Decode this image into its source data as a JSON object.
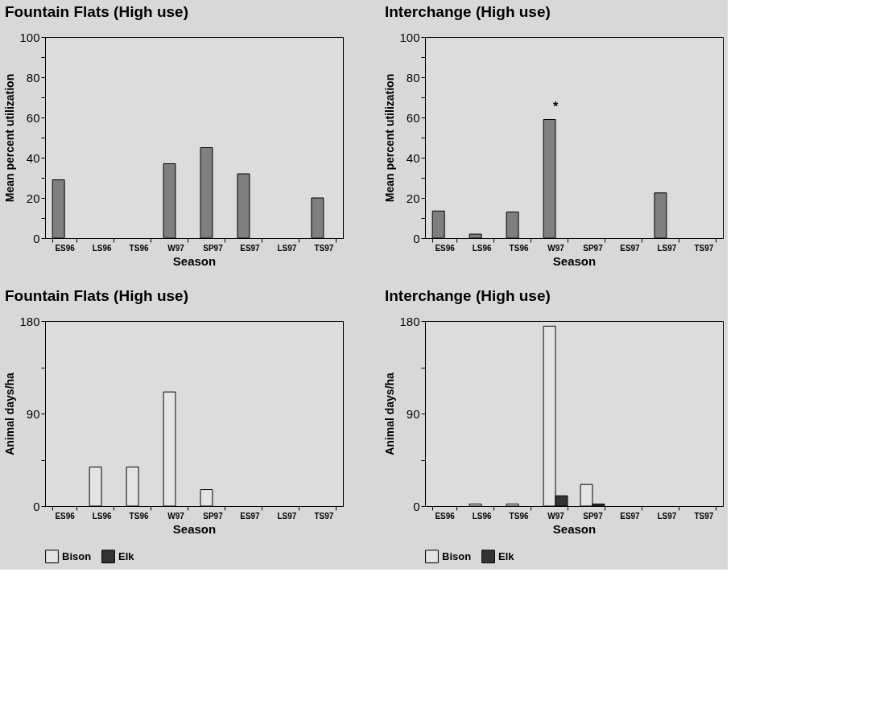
{
  "chart_data": [
    {
      "type": "bar",
      "title": "Fountain Flats (High use)",
      "xlabel": "Season",
      "ylabel": "Mean percent utilization",
      "categories": [
        "ES96",
        "LS96",
        "TS96",
        "W97",
        "SP97",
        "ES97",
        "LS97",
        "TS97"
      ],
      "series": [
        {
          "color": "#7f7f7f",
          "values": [
            29,
            0,
            0,
            37,
            45,
            32,
            0,
            20
          ]
        }
      ],
      "ylim": [
        0,
        100
      ],
      "yticks": [
        0,
        {
          "value": 10,
          "label": null
        },
        20,
        {
          "value": 30,
          "label": null
        },
        40,
        {
          "value": 50,
          "label": null
        },
        60,
        {
          "value": 70,
          "label": null
        },
        80,
        {
          "value": 90,
          "label": null
        },
        100
      ],
      "grid": false,
      "legend": false
    },
    {
      "type": "bar",
      "title": "Interchange (High use)",
      "xlabel": "Season",
      "ylabel": "Mean percent utilization",
      "categories": [
        "ES96",
        "LS96",
        "TS96",
        "W97",
        "SP97",
        "ES97",
        "LS97",
        "TS97"
      ],
      "series": [
        {
          "color": "#7f7f7f",
          "values": [
            13.5,
            2,
            13,
            59,
            0,
            0,
            22.5,
            0
          ]
        }
      ],
      "ylim": [
        0,
        100
      ],
      "yticks": [
        0,
        {
          "value": 10,
          "label": null
        },
        20,
        {
          "value": 30,
          "label": null
        },
        40,
        {
          "value": 50,
          "label": null
        },
        60,
        {
          "value": 70,
          "label": null
        },
        80,
        {
          "value": 90,
          "label": null
        },
        100
      ],
      "annotations": [
        {
          "text": "*",
          "x": "W97",
          "y": 59
        }
      ],
      "grid": false,
      "legend": false
    },
    {
      "type": "bar",
      "title": "Fountain Flats (High use)",
      "xlabel": "Season",
      "ylabel": "Animal days/ha",
      "categories": [
        "ES96",
        "LS96",
        "TS96",
        "W97",
        "SP97",
        "ES97",
        "LS97",
        "TS97"
      ],
      "series": [
        {
          "name": "Bison",
          "color": "#e4e4e4",
          "values": [
            0,
            38,
            38,
            111,
            16,
            0,
            0,
            0
          ]
        },
        {
          "name": "Elk",
          "color": "#333333",
          "values": [
            0,
            0,
            0,
            0,
            0,
            0,
            0,
            0
          ]
        }
      ],
      "ylim": [
        0,
        180
      ],
      "yticks": [
        0,
        {
          "value": 45,
          "label": null
        },
        90,
        {
          "value": 135,
          "label": null
        },
        180
      ],
      "grid": false,
      "legend": "bottom"
    },
    {
      "type": "bar",
      "title": "Interchange (High use)",
      "xlabel": "Season",
      "ylabel": "Animal days/ha",
      "categories": [
        "ES96",
        "LS96",
        "TS96",
        "W97",
        "SP97",
        "ES97",
        "LS97",
        "TS97"
      ],
      "series": [
        {
          "name": "Bison",
          "color": "#e4e4e4",
          "values": [
            0,
            2,
            2,
            175,
            21,
            0,
            0,
            0
          ]
        },
        {
          "name": "Elk",
          "color": "#333333",
          "values": [
            0,
            0,
            0,
            10,
            2,
            0,
            0,
            0
          ]
        }
      ],
      "ylim": [
        0,
        180
      ],
      "yticks": [
        0,
        {
          "value": 45,
          "label": null
        },
        90,
        {
          "value": 135,
          "label": null
        },
        180
      ],
      "grid": false,
      "legend": "bottom"
    }
  ]
}
